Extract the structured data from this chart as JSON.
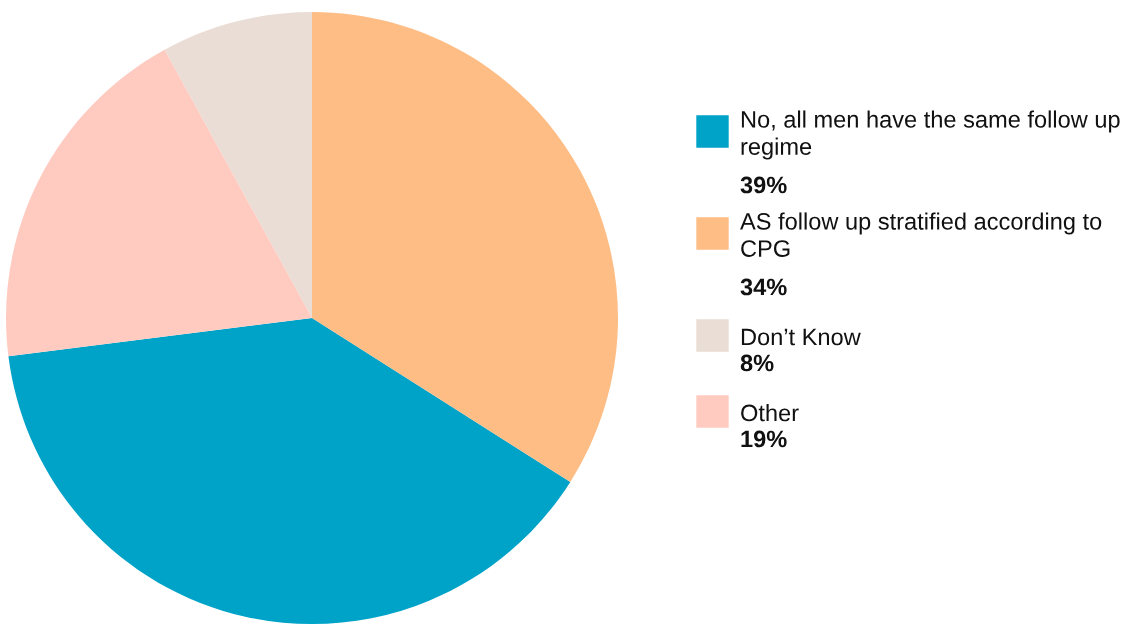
{
  "chart_data": {
    "type": "pie",
    "categories": [
      "No, all men have the same follow up regime",
      "AS follow up stratified according to CPG",
      "Don’t Know",
      "Other"
    ],
    "values": [
      39,
      34,
      8,
      19
    ],
    "colors": [
      "#00a3c8",
      "#ffbd86",
      "#eaddd6",
      "#ffcbc1"
    ],
    "value_labels": [
      "39%",
      "34%",
      "8%",
      "19%"
    ],
    "legend": "right"
  }
}
